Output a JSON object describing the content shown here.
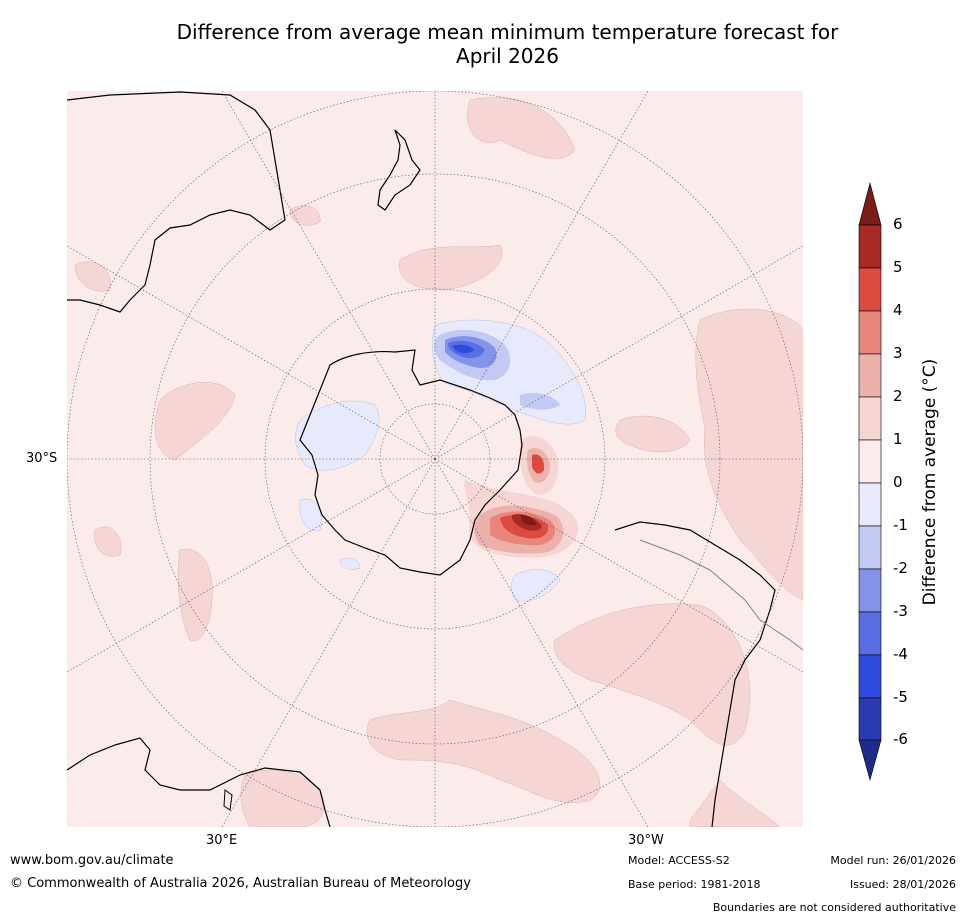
{
  "title": {
    "line1": "Difference from average mean minimum temperature forecast for",
    "line2": "April 2026"
  },
  "map": {
    "lat_labels": [
      "30°S"
    ],
    "lon_labels": [
      "30°E",
      "30°W"
    ]
  },
  "colorbar": {
    "label": "Difference from average (°C)",
    "ticks": [
      "6",
      "5",
      "4",
      "3",
      "2",
      "1",
      "0",
      "-1",
      "-2",
      "-3",
      "-4",
      "-5",
      "-6"
    ],
    "colors": {
      "above_6": "#7a1c18",
      "5_to_6": "#a72a25",
      "4_to_5": "#db4b3f",
      "3_to_4": "#e8867d",
      "2_to_3": "#edb1ab",
      "1_to_2": "#f5d6d4",
      "0_to_1": "#fbeceb",
      "m1_to_0": "#e6eafb",
      "m2_to_m1": "#c2c9f2",
      "m3_to_m2": "#8493e9",
      "m4_to_m3": "#5a6ee3",
      "m5_to_m4": "#304be0",
      "m6_to_m5": "#2a3bb2",
      "below_m6": "#1f2b86"
    }
  },
  "footer": {
    "website": "www.bom.gov.au/climate",
    "copyright": "© Commonwealth of Australia 2026, Australian Bureau of Meteorology",
    "model": "Model: ACCESS-S2",
    "base_period": "Base period: 1981-2018",
    "model_run": "Model run: 26/01/2026",
    "issued": "Issued: 28/01/2026",
    "disclaimer": "Boundaries are not considered authoritative"
  }
}
